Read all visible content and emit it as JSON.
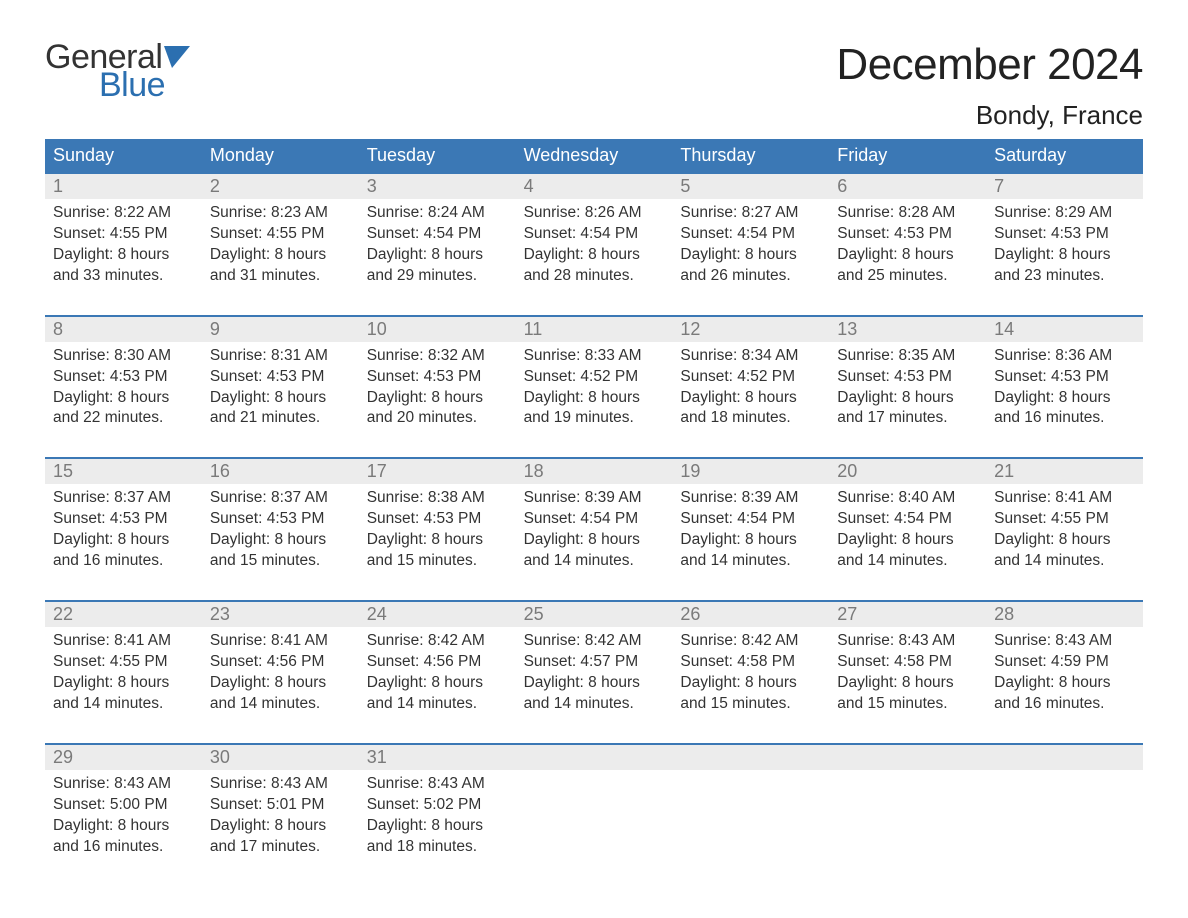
{
  "logo": {
    "text_general": "General",
    "text_blue": "Blue",
    "flag_color": "#2b6fb0"
  },
  "title": "December 2024",
  "location": "Bondy, France",
  "colors": {
    "header_bg": "#3b78b5",
    "header_text": "#ffffff",
    "daynum_bg": "#ececec",
    "daynum_text": "#7a7a7a",
    "week_border": "#3b78b5",
    "body_text": "#333333",
    "background": "#ffffff",
    "logo_blue": "#2b6fb0"
  },
  "weekdays": [
    "Sunday",
    "Monday",
    "Tuesday",
    "Wednesday",
    "Thursday",
    "Friday",
    "Saturday"
  ],
  "weeks": [
    [
      {
        "n": "1",
        "sunrise": "Sunrise: 8:22 AM",
        "sunset": "Sunset: 4:55 PM",
        "d1": "Daylight: 8 hours",
        "d2": "and 33 minutes."
      },
      {
        "n": "2",
        "sunrise": "Sunrise: 8:23 AM",
        "sunset": "Sunset: 4:55 PM",
        "d1": "Daylight: 8 hours",
        "d2": "and 31 minutes."
      },
      {
        "n": "3",
        "sunrise": "Sunrise: 8:24 AM",
        "sunset": "Sunset: 4:54 PM",
        "d1": "Daylight: 8 hours",
        "d2": "and 29 minutes."
      },
      {
        "n": "4",
        "sunrise": "Sunrise: 8:26 AM",
        "sunset": "Sunset: 4:54 PM",
        "d1": "Daylight: 8 hours",
        "d2": "and 28 minutes."
      },
      {
        "n": "5",
        "sunrise": "Sunrise: 8:27 AM",
        "sunset": "Sunset: 4:54 PM",
        "d1": "Daylight: 8 hours",
        "d2": "and 26 minutes."
      },
      {
        "n": "6",
        "sunrise": "Sunrise: 8:28 AM",
        "sunset": "Sunset: 4:53 PM",
        "d1": "Daylight: 8 hours",
        "d2": "and 25 minutes."
      },
      {
        "n": "7",
        "sunrise": "Sunrise: 8:29 AM",
        "sunset": "Sunset: 4:53 PM",
        "d1": "Daylight: 8 hours",
        "d2": "and 23 minutes."
      }
    ],
    [
      {
        "n": "8",
        "sunrise": "Sunrise: 8:30 AM",
        "sunset": "Sunset: 4:53 PM",
        "d1": "Daylight: 8 hours",
        "d2": "and 22 minutes."
      },
      {
        "n": "9",
        "sunrise": "Sunrise: 8:31 AM",
        "sunset": "Sunset: 4:53 PM",
        "d1": "Daylight: 8 hours",
        "d2": "and 21 minutes."
      },
      {
        "n": "10",
        "sunrise": "Sunrise: 8:32 AM",
        "sunset": "Sunset: 4:53 PM",
        "d1": "Daylight: 8 hours",
        "d2": "and 20 minutes."
      },
      {
        "n": "11",
        "sunrise": "Sunrise: 8:33 AM",
        "sunset": "Sunset: 4:52 PM",
        "d1": "Daylight: 8 hours",
        "d2": "and 19 minutes."
      },
      {
        "n": "12",
        "sunrise": "Sunrise: 8:34 AM",
        "sunset": "Sunset: 4:52 PM",
        "d1": "Daylight: 8 hours",
        "d2": "and 18 minutes."
      },
      {
        "n": "13",
        "sunrise": "Sunrise: 8:35 AM",
        "sunset": "Sunset: 4:53 PM",
        "d1": "Daylight: 8 hours",
        "d2": "and 17 minutes."
      },
      {
        "n": "14",
        "sunrise": "Sunrise: 8:36 AM",
        "sunset": "Sunset: 4:53 PM",
        "d1": "Daylight: 8 hours",
        "d2": "and 16 minutes."
      }
    ],
    [
      {
        "n": "15",
        "sunrise": "Sunrise: 8:37 AM",
        "sunset": "Sunset: 4:53 PM",
        "d1": "Daylight: 8 hours",
        "d2": "and 16 minutes."
      },
      {
        "n": "16",
        "sunrise": "Sunrise: 8:37 AM",
        "sunset": "Sunset: 4:53 PM",
        "d1": "Daylight: 8 hours",
        "d2": "and 15 minutes."
      },
      {
        "n": "17",
        "sunrise": "Sunrise: 8:38 AM",
        "sunset": "Sunset: 4:53 PM",
        "d1": "Daylight: 8 hours",
        "d2": "and 15 minutes."
      },
      {
        "n": "18",
        "sunrise": "Sunrise: 8:39 AM",
        "sunset": "Sunset: 4:54 PM",
        "d1": "Daylight: 8 hours",
        "d2": "and 14 minutes."
      },
      {
        "n": "19",
        "sunrise": "Sunrise: 8:39 AM",
        "sunset": "Sunset: 4:54 PM",
        "d1": "Daylight: 8 hours",
        "d2": "and 14 minutes."
      },
      {
        "n": "20",
        "sunrise": "Sunrise: 8:40 AM",
        "sunset": "Sunset: 4:54 PM",
        "d1": "Daylight: 8 hours",
        "d2": "and 14 minutes."
      },
      {
        "n": "21",
        "sunrise": "Sunrise: 8:41 AM",
        "sunset": "Sunset: 4:55 PM",
        "d1": "Daylight: 8 hours",
        "d2": "and 14 minutes."
      }
    ],
    [
      {
        "n": "22",
        "sunrise": "Sunrise: 8:41 AM",
        "sunset": "Sunset: 4:55 PM",
        "d1": "Daylight: 8 hours",
        "d2": "and 14 minutes."
      },
      {
        "n": "23",
        "sunrise": "Sunrise: 8:41 AM",
        "sunset": "Sunset: 4:56 PM",
        "d1": "Daylight: 8 hours",
        "d2": "and 14 minutes."
      },
      {
        "n": "24",
        "sunrise": "Sunrise: 8:42 AM",
        "sunset": "Sunset: 4:56 PM",
        "d1": "Daylight: 8 hours",
        "d2": "and 14 minutes."
      },
      {
        "n": "25",
        "sunrise": "Sunrise: 8:42 AM",
        "sunset": "Sunset: 4:57 PM",
        "d1": "Daylight: 8 hours",
        "d2": "and 14 minutes."
      },
      {
        "n": "26",
        "sunrise": "Sunrise: 8:42 AM",
        "sunset": "Sunset: 4:58 PM",
        "d1": "Daylight: 8 hours",
        "d2": "and 15 minutes."
      },
      {
        "n": "27",
        "sunrise": "Sunrise: 8:43 AM",
        "sunset": "Sunset: 4:58 PM",
        "d1": "Daylight: 8 hours",
        "d2": "and 15 minutes."
      },
      {
        "n": "28",
        "sunrise": "Sunrise: 8:43 AM",
        "sunset": "Sunset: 4:59 PM",
        "d1": "Daylight: 8 hours",
        "d2": "and 16 minutes."
      }
    ],
    [
      {
        "n": "29",
        "sunrise": "Sunrise: 8:43 AM",
        "sunset": "Sunset: 5:00 PM",
        "d1": "Daylight: 8 hours",
        "d2": "and 16 minutes."
      },
      {
        "n": "30",
        "sunrise": "Sunrise: 8:43 AM",
        "sunset": "Sunset: 5:01 PM",
        "d1": "Daylight: 8 hours",
        "d2": "and 17 minutes."
      },
      {
        "n": "31",
        "sunrise": "Sunrise: 8:43 AM",
        "sunset": "Sunset: 5:02 PM",
        "d1": "Daylight: 8 hours",
        "d2": "and 18 minutes."
      },
      null,
      null,
      null,
      null
    ]
  ]
}
